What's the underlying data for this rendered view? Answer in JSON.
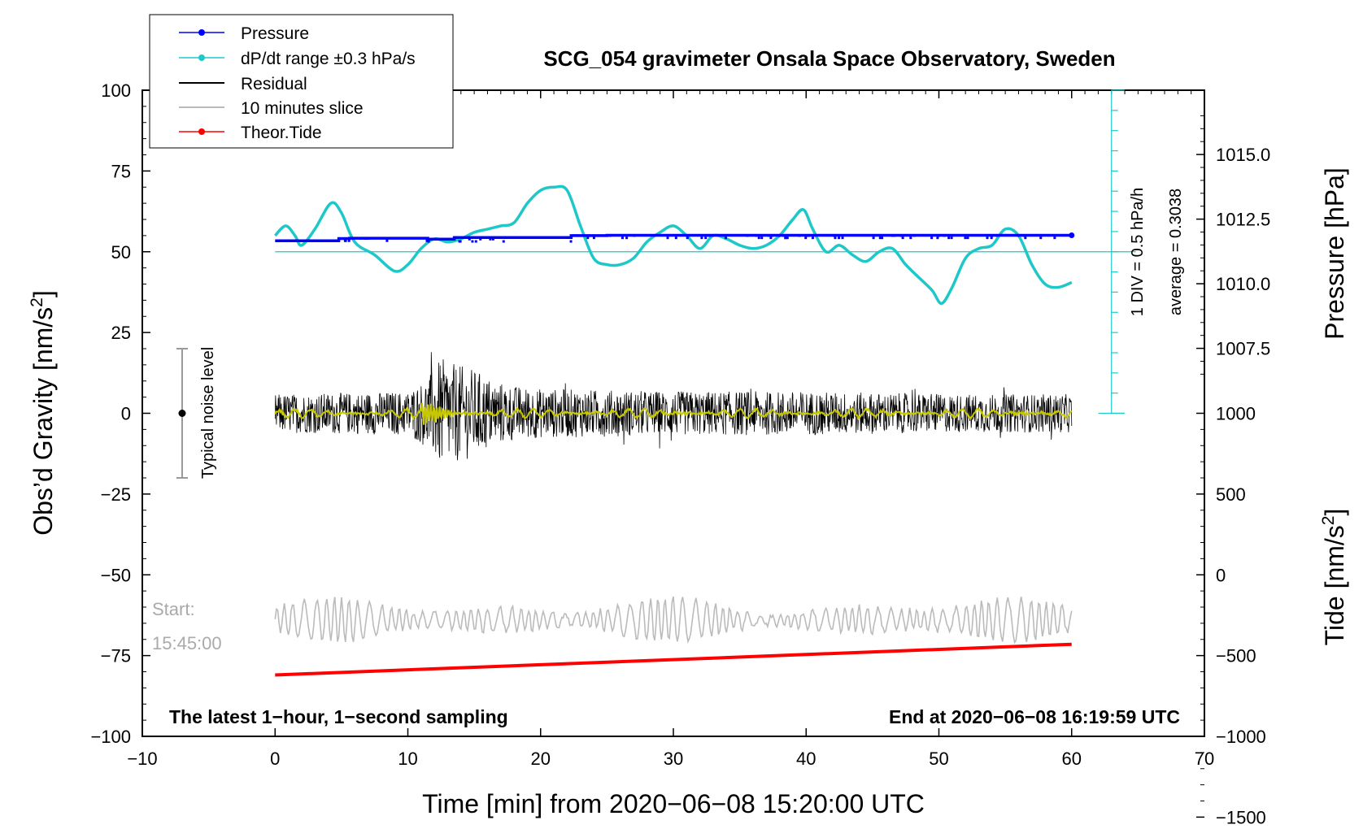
{
  "chart_data": {
    "type": "line",
    "title": "SCG_054 gravimeter Onsala Space Observatory, Sweden",
    "xlabel": "Time [min] from 2020−06−08 15:20:00 UTC",
    "ylabel_left": "Obs’d Gravity [nm/s",
    "ylabel_right_top": "Pressure [hPa]",
    "ylabel_right_bottom": "Tide [nm/s",
    "unit_superscript": "2",
    "unit_close": "]",
    "xlim": [
      -10,
      70
    ],
    "ylim": [
      -100,
      100
    ],
    "x_ticks": [
      -10,
      0,
      10,
      20,
      30,
      40,
      50,
      60,
      70
    ],
    "x_tick_labels": [
      "−10",
      "0",
      "10",
      "20",
      "30",
      "40",
      "50",
      "60",
      "70"
    ],
    "y_ticks": [
      100,
      75,
      50,
      25,
      0,
      -25,
      -50,
      -75,
      -100
    ],
    "y_tick_labels": [
      "100",
      "75",
      "50",
      "25",
      "0",
      "−25",
      "−50",
      "−75",
      "−100"
    ],
    "pressure_axis": {
      "ticks": [
        1015.0,
        1012.5,
        1010.0,
        1007.5
      ],
      "tick_labels": [
        "1015.0",
        "1012.5",
        "1010.0",
        "1007.5"
      ],
      "gravity_at_1010": 40.1,
      "gravity_per_hpa": 8.0
    },
    "tide_axis": {
      "ticks": [
        1000,
        500,
        0,
        -500,
        -1000,
        -1500
      ],
      "tick_labels": [
        "1000",
        "500",
        "0",
        "−500",
        "−1000",
        "−1500"
      ],
      "gravity_at_0": -50,
      "gravity_per_unit": 0.05
    },
    "dpdt_scale": {
      "label_div": "1 DIV = 0.5 hPa/h",
      "label_avg": "average = 0.3038",
      "x": 63,
      "y_bottom": 0,
      "y_top": 100,
      "div_count": 16,
      "reference_y": 50
    },
    "series": [
      {
        "name": "Pressure",
        "color": "#0000ff",
        "description": "step-like nearly flat near 1011.8 hPa",
        "x": [
          0,
          4.8,
          4.8,
          5.6,
          5.6,
          11.5,
          11.5,
          13.5,
          13.5,
          22.3,
          22.3,
          25.0,
          25.0,
          60
        ],
        "values": [
          53.4,
          53.4,
          54.1,
          54.1,
          54.2,
          54.2,
          53.9,
          53.9,
          54.4,
          54.4,
          55.0,
          55.0,
          55.1,
          55.1
        ]
      },
      {
        "name": "dP/dt range ±0.3 hPa/s",
        "color": "#1ec8c8",
        "x": [
          0,
          0.8,
          1.5,
          2.0,
          3.0,
          4.2,
          5.0,
          6.0,
          7.5,
          9.0,
          10.0,
          11.0,
          12.0,
          13.0,
          14.0,
          15.0,
          16.0,
          17.0,
          18.0,
          19.0,
          20.0,
          21.0,
          22.0,
          23.0,
          24.0,
          25.0,
          26.0,
          27.0,
          28.0,
          29.0,
          30.0,
          31.0,
          32.0,
          33.0,
          34.0,
          35.0,
          36.0,
          37.0,
          38.0,
          39.0,
          39.8,
          40.5,
          41.5,
          42.5,
          43.5,
          44.5,
          45.5,
          46.5,
          47.5,
          48.5,
          49.5,
          50.2,
          51.0,
          52.0,
          53.0,
          54.0,
          55.0,
          56.0,
          57.0,
          58.0,
          59.0,
          60.0
        ],
        "values": [
          55,
          58,
          55,
          52,
          57,
          65,
          62,
          53,
          49,
          44,
          46,
          51,
          54,
          53,
          54,
          56,
          57,
          58,
          59,
          65,
          69,
          70,
          69,
          58,
          48,
          46,
          46,
          48,
          53,
          56,
          58,
          55,
          51,
          55,
          54,
          52,
          51,
          52,
          55,
          60,
          63,
          57,
          50,
          52,
          49,
          47,
          50,
          51,
          46,
          42,
          38,
          34,
          39,
          48,
          51,
          52,
          57,
          55,
          46,
          40,
          39,
          40.5
        ]
      },
      {
        "name": "Residual",
        "color": "#000000",
        "description": "dense noise around 0, envelope about ±8, burst to about ±20 at 11–16 min",
        "envelope": [
          [
            0,
            7
          ],
          [
            10,
            8
          ],
          [
            11.5,
            13
          ],
          [
            12.5,
            20
          ],
          [
            13.5,
            18
          ],
          [
            15,
            16
          ],
          [
            16.5,
            12
          ],
          [
            18,
            10
          ],
          [
            20,
            9
          ],
          [
            30,
            8
          ],
          [
            40,
            8
          ],
          [
            50,
            7
          ],
          [
            60,
            7
          ]
        ]
      },
      {
        "name": "10 minutes slice",
        "color": "#bbbbbb",
        "center": -64,
        "amplitude": 7
      },
      {
        "name": "Theor.Tide",
        "color": "#ff0000",
        "x": [
          0,
          60
        ],
        "values": [
          -81,
          -71.5
        ]
      },
      {
        "name": "Smoothed residual",
        "color": "#c8c800",
        "center": 0,
        "amplitude": 1.3
      }
    ],
    "noise_bar": {
      "label": "Typical noise level",
      "x": -7,
      "y_low": -20,
      "y_high": 20,
      "y_point": 0
    },
    "annotations": {
      "start_label": "Start:",
      "start_time": "15:45:00",
      "bottom_left": "The latest 1−hour, 1−second sampling",
      "bottom_right": "End at 2020−06−08 16:19:59 UTC"
    },
    "legend": {
      "placement": "top-left",
      "entries": [
        {
          "label": "Pressure",
          "color": "#0000ff",
          "marker": true
        },
        {
          "label": "dP/dt range ±0.3 hPa/s",
          "color": "#1ec8c8",
          "marker": true
        },
        {
          "label": "Residual",
          "color": "#000000",
          "marker": false
        },
        {
          "label": "10 minutes slice",
          "color": "#bbbbbb",
          "marker": false
        },
        {
          "label": "Theor.Tide",
          "color": "#ff0000",
          "marker": true
        }
      ]
    }
  }
}
